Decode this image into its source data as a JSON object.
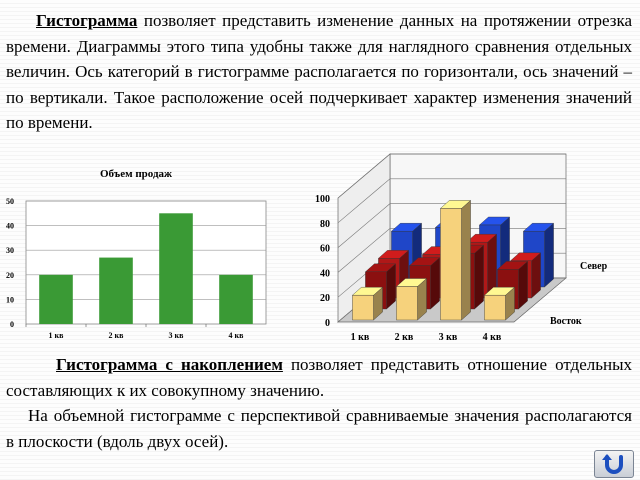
{
  "intro": {
    "term": "Гистограмма",
    "text": "позволяет представить изменение данных на протяжении отрезка времени. Диаграммы этого типа удобны также для наглядного сравнения отдельных величин. Ось категорий в гистограмме располагается по горизонтали, ось значений – по вертикали. Такое расположение осей подчеркивает характер изменения значений по времени."
  },
  "stacked": {
    "term": "Гистограмма с накоплением",
    "text1": "позволяет представить отношение отдельных составляющих к их совокупному значению.",
    "text2": "На объемной гистограмме с перспективой сравниваемые значения располагаются в плоскости (вдоль двух осей)."
  },
  "nav": {
    "icon": "return-arrow-icon"
  },
  "colors": {
    "bar_green": "#3a9a35",
    "south": "#f6d27c",
    "west": "#8b1010",
    "north": "#1f46c8"
  },
  "chart_data": [
    {
      "type": "bar",
      "title": "Объем продаж",
      "categories": [
        "1 кв",
        "2 кв",
        "3 кв",
        "4 кв"
      ],
      "values": [
        20,
        27,
        45,
        20
      ],
      "ylim": [
        0,
        50
      ],
      "yticks": [
        "0",
        "10",
        "20",
        "30",
        "40",
        "50"
      ],
      "grid": true
    },
    {
      "type": "bar",
      "subtype": "3d",
      "categories": [
        "1 кв",
        "2 кв",
        "3 кв",
        "4 кв"
      ],
      "depth_labels": [
        "Север",
        "Восток"
      ],
      "series": [
        {
          "name": "",
          "values": [
            20,
            27,
            90,
            20
          ]
        },
        {
          "name": "",
          "values": [
            30,
            35,
            45,
            32
          ]
        },
        {
          "name": "Восток",
          "values": [
            32,
            35,
            45,
            30
          ]
        },
        {
          "name": "Север",
          "values": [
            45,
            48,
            50,
            45
          ]
        }
      ],
      "ylim": [
        0,
        100
      ],
      "yticks": [
        "0",
        "20",
        "40",
        "60",
        "80",
        "100"
      ]
    }
  ]
}
